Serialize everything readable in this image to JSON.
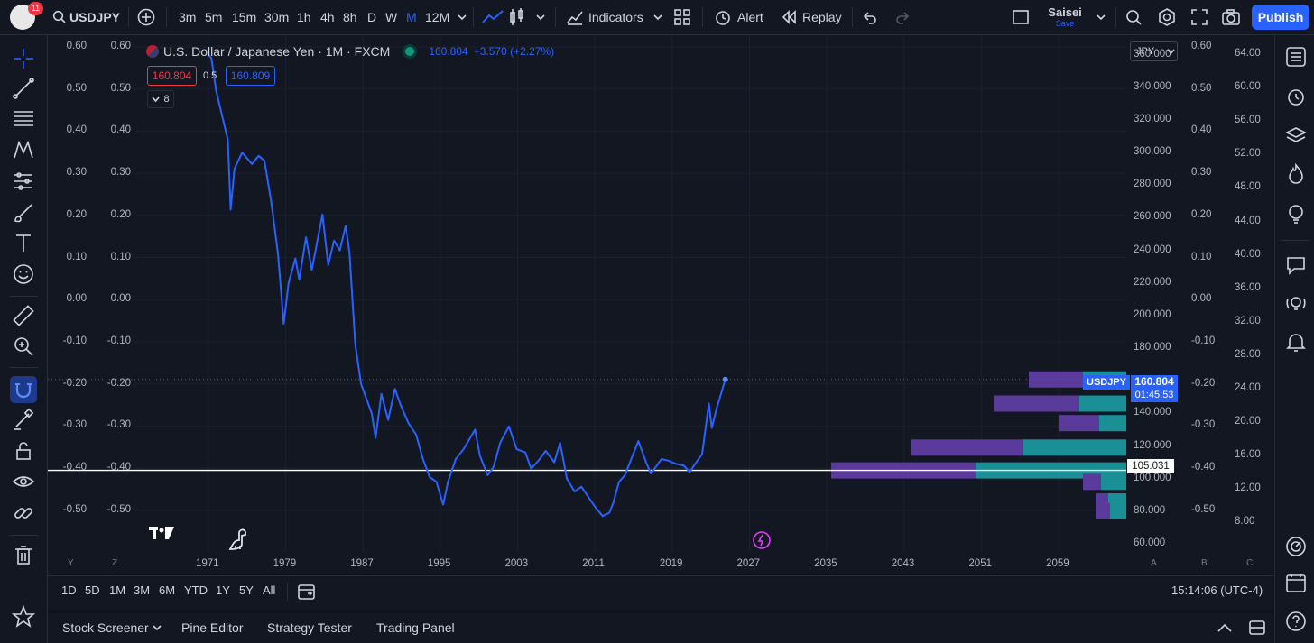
{
  "topbar": {
    "notification_count": "11",
    "symbol": "USDJPY",
    "intervals": [
      "3m",
      "5m",
      "15m",
      "30m",
      "1h",
      "4h",
      "8h",
      "D",
      "W",
      "M",
      "12M"
    ],
    "active_interval": "M",
    "indicators_label": "Indicators",
    "alert_label": "Alert",
    "replay_label": "Replay",
    "layout_name": "Saisei",
    "layout_save": "Save",
    "publish_label": "Publish"
  },
  "legend": {
    "title": "U.S. Dollar / Japanese Yen · 1M · FXCM",
    "price": "160.804",
    "change": "+3.570 (+2.27%)",
    "sell_price": "160.804",
    "spread": "0.5",
    "buy_price": "160.809",
    "collapse_count": "8"
  },
  "currency_selector": "JPY",
  "left_axis_outer": [
    "0.60",
    "0.50",
    "0.40",
    "0.30",
    "0.20",
    "0.10",
    "0.00",
    "-0.10",
    "-0.20",
    "-0.30",
    "-0.40",
    "-0.50"
  ],
  "left_axis_inner": [
    "0.60",
    "0.50",
    "0.40",
    "0.30",
    "0.20",
    "0.10",
    "0.00",
    "-0.10",
    "-0.20",
    "-0.30",
    "-0.40",
    "-0.50"
  ],
  "price_axis": [
    "360.000",
    "340.000",
    "320.000",
    "300.000",
    "280.000",
    "260.000",
    "240.000",
    "220.000",
    "200.000",
    "180.000",
    "140.000",
    "120.000",
    "100.000",
    "80.000",
    "60.000"
  ],
  "right_axis_inner": [
    "0.60",
    "0.50",
    "0.40",
    "0.30",
    "0.20",
    "0.10",
    "0.00",
    "-0.10",
    "-0.20",
    "-0.30",
    "-0.40",
    "-0.50"
  ],
  "right_axis_outer": [
    "64.00",
    "60.00",
    "56.00",
    "52.00",
    "48.00",
    "44.00",
    "40.00",
    "36.00",
    "32.00",
    "28.00",
    "24.00",
    "20.00",
    "16.00",
    "12.00",
    "8.00"
  ],
  "price_tag": {
    "symbol": "USDJPY",
    "price": "160.804",
    "countdown": "01:45:53"
  },
  "hline_tag": "105.031",
  "time_axis": [
    "1971",
    "1979",
    "1987",
    "1995",
    "2003",
    "2011",
    "2019",
    "2027",
    "2035",
    "2043",
    "2051",
    "2059"
  ],
  "axis_corner_labels": {
    "y": "Y",
    "z": "Z",
    "a": "A",
    "b": "B",
    "c": "C"
  },
  "timeframes": [
    "1D",
    "5D",
    "1M",
    "3M",
    "6M",
    "YTD",
    "1Y",
    "5Y",
    "All"
  ],
  "clock": "15:14:06 (UTC-4)",
  "panels": [
    "Stock Screener",
    "Pine Editor",
    "Strategy Tester",
    "Trading Panel"
  ],
  "colors": {
    "line": "#2962ff",
    "accent": "#2962ff",
    "red": "#f23645",
    "vp_up": "#22ab94",
    "vp_down": "#7e57c2",
    "bg": "#131722"
  },
  "chart_data": {
    "type": "line",
    "series": [
      {
        "name": "USDJPY",
        "x": [
          1971,
          1971.3,
          1971.8,
          1973,
          1973.3,
          1973.7,
          1974.5,
          1975.5,
          1976.2,
          1976.8,
          1977.5,
          1978.2,
          1978.8,
          1979.3,
          1980,
          1980.4,
          1981.1,
          1981.7,
          1982.8,
          1983.4,
          1984,
          1984.6,
          1985.2,
          1985.6,
          1986.2,
          1986.8,
          1987.9,
          1988.3,
          1988.9,
          1989.6,
          1990.3,
          1990.9,
          1991.7,
          1992.5,
          1993.2,
          1993.9,
          1994.6,
          1995.3,
          1995.8,
          1996.6,
          1997.4,
          1998.6,
          1999.1,
          1999.9,
          2000.5,
          2001.2,
          2002.1,
          2002.9,
          2003.8,
          2004.4,
          2005.3,
          2005.9,
          2006.8,
          2007.4,
          2008.1,
          2008.9,
          2009.6,
          2010.4,
          2011.1,
          2011.8,
          2012.5,
          2012.9,
          2013.5,
          2014.1,
          2014.9,
          2015.5,
          2016.3,
          2016.8,
          2017.9,
          2018.6,
          2019.4,
          2020.2,
          2020.8,
          2021.5,
          2022.1,
          2022.8,
          2023.1,
          2023.6,
          2024.0,
          2024.5
        ],
        "y": [
          360,
          358,
          338,
          308,
          265,
          290,
          300,
          293,
          298,
          295,
          270,
          238,
          195,
          220,
          235,
          222,
          248,
          228,
          262,
          231,
          246,
          240,
          255,
          239,
          182,
          158,
          140,
          125,
          152,
          136,
          155,
          145,
          134,
          127,
          112,
          101,
          98,
          84,
          98,
          112,
          118,
          130,
          114,
          102,
          107,
          122,
          132,
          118,
          116,
          106,
          112,
          117,
          110,
          122,
          100,
          92,
          95,
          88,
          82,
          77,
          79,
          85,
          98,
          102,
          114,
          123,
          110,
          103,
          112,
          111,
          109,
          108,
          104,
          110,
          115,
          146,
          131,
          143,
          151,
          160.8
        ]
      }
    ],
    "xlim": [
      1964,
      2066
    ],
    "ylim": [
      55,
      372
    ],
    "horizontal_line": 105.031,
    "last_price": 160.804
  }
}
